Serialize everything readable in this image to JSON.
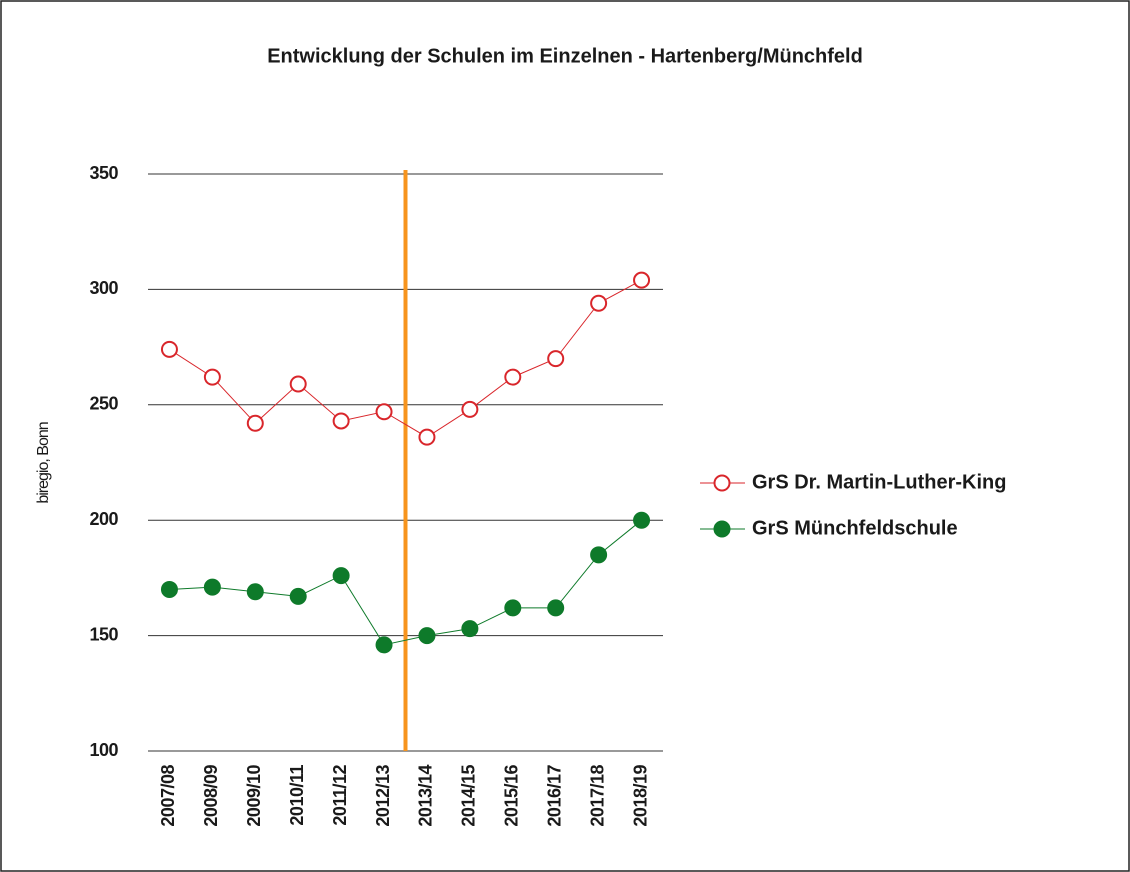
{
  "chart_data": {
    "type": "line",
    "title": "Entwicklung der Schulen im Einzelnen - Hartenberg/Münchfeld",
    "y_label": "biregio, Bonn",
    "categories": [
      "2007/08",
      "2008/09",
      "2009/10",
      "2010/11",
      "2011/12",
      "2012/13",
      "2013/14",
      "2014/15",
      "2015/16",
      "2016/17",
      "2017/18",
      "2018/19"
    ],
    "series": [
      {
        "name": "GrS Dr. Martin-Luther-King",
        "color": "#d9262b",
        "marker": "open",
        "values": [
          274,
          262,
          242,
          259,
          243,
          247,
          236,
          248,
          262,
          270,
          294,
          304
        ]
      },
      {
        "name": "GrS Münchfeldschule",
        "color": "#0e7a2a",
        "marker": "filled",
        "values": [
          170,
          171,
          169,
          167,
          176,
          146,
          150,
          153,
          162,
          162,
          185,
          200
        ]
      }
    ],
    "ylim": [
      100,
      350
    ],
    "yticks": [
      100,
      150,
      200,
      250,
      300,
      350
    ],
    "grid": true,
    "marker_line": {
      "between": [
        "2012/13",
        "2013/14"
      ],
      "color": "#f7941d"
    },
    "legend": "right"
  }
}
